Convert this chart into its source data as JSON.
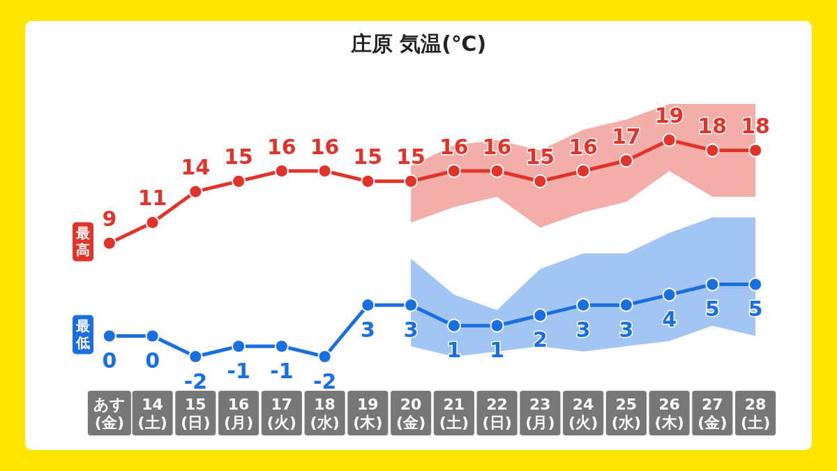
{
  "chart_data": {
    "type": "line",
    "title": "庄原 気温(℃)",
    "categories": [
      "あす(金)",
      "14(土)",
      "15(日)",
      "16(月)",
      "17(火)",
      "18(水)",
      "19(木)",
      "20(金)",
      "21(土)",
      "22(日)",
      "23(月)",
      "24(火)",
      "25(水)",
      "26(木)",
      "27(金)",
      "28(土)"
    ],
    "series": [
      {
        "name": "最高",
        "color": "#e0342a",
        "values": [
          9,
          11,
          14,
          15,
          16,
          16,
          15,
          15,
          16,
          16,
          15,
          16,
          17,
          19,
          18,
          18
        ],
        "lower": [
          null,
          null,
          null,
          null,
          null,
          null,
          null,
          11,
          12.5,
          13.5,
          10.5,
          12,
          13,
          16,
          13.5,
          13.5
        ],
        "upper": [
          null,
          null,
          null,
          null,
          null,
          null,
          null,
          16.5,
          18.5,
          19,
          18,
          20,
          21,
          22.5,
          22.5,
          22.5
        ]
      },
      {
        "name": "最低",
        "color": "#1a6fe0",
        "values": [
          0,
          0,
          -2,
          -1,
          -1,
          -2,
          3,
          3,
          1,
          1,
          2,
          3,
          3,
          4,
          5,
          5
        ],
        "lower": [
          null,
          null,
          null,
          null,
          null,
          null,
          null,
          -1,
          -2,
          -1.5,
          -1,
          -1.5,
          -1,
          -0.5,
          1,
          0
        ],
        "upper": [
          null,
          null,
          null,
          null,
          null,
          null,
          null,
          7.5,
          4,
          2.5,
          6.5,
          8,
          8,
          10,
          11.5,
          11.5
        ]
      }
    ],
    "data_labels": true,
    "marker": "circle",
    "legend": false
  }
}
